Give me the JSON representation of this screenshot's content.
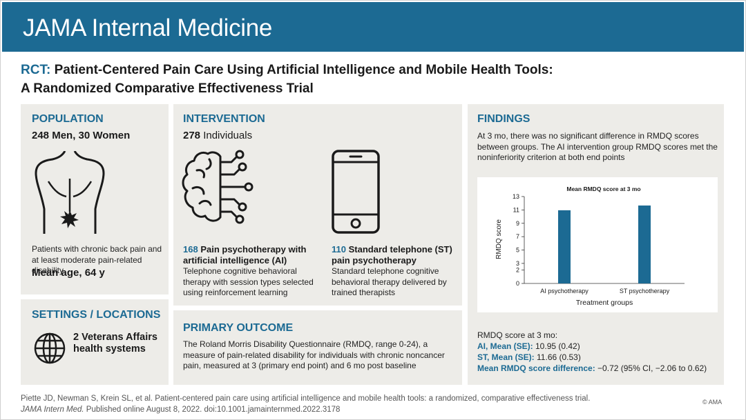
{
  "header": {
    "journal": "JAMA Internal Medicine"
  },
  "title": {
    "prefix": "RCT:",
    "line1": "Patient-Centered Pain Care Using Artificial Intelligence and Mobile Health Tools:",
    "line2": "A Randomized Comparative Effectiveness Trial"
  },
  "population": {
    "heading": "POPULATION",
    "count": "248 Men, 30 Women",
    "description": "Patients with chronic back pain and at least moderate pain-related disability",
    "mean_age": "Mean age, 64 y",
    "icon": "back-pain-icon"
  },
  "settings": {
    "heading": "SETTINGS / LOCATIONS",
    "text_line1": "2 Veterans Affairs",
    "text_line2": "health systems",
    "icon": "globe-icon"
  },
  "intervention": {
    "heading": "INTERVENTION",
    "count_num": "278",
    "count_label": " Individuals",
    "ai": {
      "num": "168",
      "label_line1": " Pain psychotherapy with",
      "label_line2": "artificial intelligence (AI)",
      "description": "Telephone cognitive behavioral therapy with session types selected using reinforcement learning",
      "icon": "ai-brain-icon"
    },
    "st": {
      "num": "110",
      "label_line1": " Standard telephone (ST)",
      "label_line2": "pain psychotherapy",
      "description": "Standard telephone cognitive behavioral therapy delivered by trained therapists",
      "icon": "smartphone-icon"
    }
  },
  "primary_outcome": {
    "heading": "PRIMARY OUTCOME",
    "text": "The Roland Morris Disability Questionnaire (RMDQ, range 0-24), a measure of pain-related disability for individuals with chronic noncancer pain, measured at 3 (primary end point) and 6 mo post baseline"
  },
  "findings": {
    "heading": "FINDINGS",
    "text": "At 3 mo, there was no significant difference in RMDQ scores between groups. The AI intervention group RMDQ scores met the noninferiority criterion at both end points",
    "stats_intro": "RMDQ score at 3 mo:",
    "ai_label": "AI, Mean (SE):",
    "ai_value": " 10.95 (0.42)",
    "st_label": "ST, Mean (SE):",
    "st_value": " 11.66 (0.53)",
    "diff_label": "Mean RMDQ score difference:",
    "diff_value": " −0.72 (95% CI, −2.06 to 0.62)"
  },
  "chart_data": {
    "type": "bar",
    "title": "Mean RMDQ score at 3 mo",
    "categories": [
      "AI psychotherapy",
      "ST psychotherapy"
    ],
    "values": [
      10.95,
      11.66
    ],
    "xlabel": "Treatment groups",
    "ylabel": "RMDQ score",
    "ylim": [
      0,
      13
    ],
    "yticks": [
      0,
      2,
      3,
      5,
      7,
      9,
      11,
      13
    ],
    "bar_color": "#1c6a93",
    "grid": false
  },
  "footer": {
    "citation_line1": "Piette JD, Newman S, Krein SL, et al.  Patient-centered pain care using artificial intelligence and mobile health tools: a randomized, comparative effectiveness trial.",
    "journal_abbrev": "JAMA Intern Med.",
    "citation_line2": " Published online August 8, 2022. doi:10.1001.jamainternmed.2022.3178",
    "copyright": "© AMA"
  },
  "colors": {
    "accent": "#1c6a93",
    "panel": "#edece8"
  }
}
